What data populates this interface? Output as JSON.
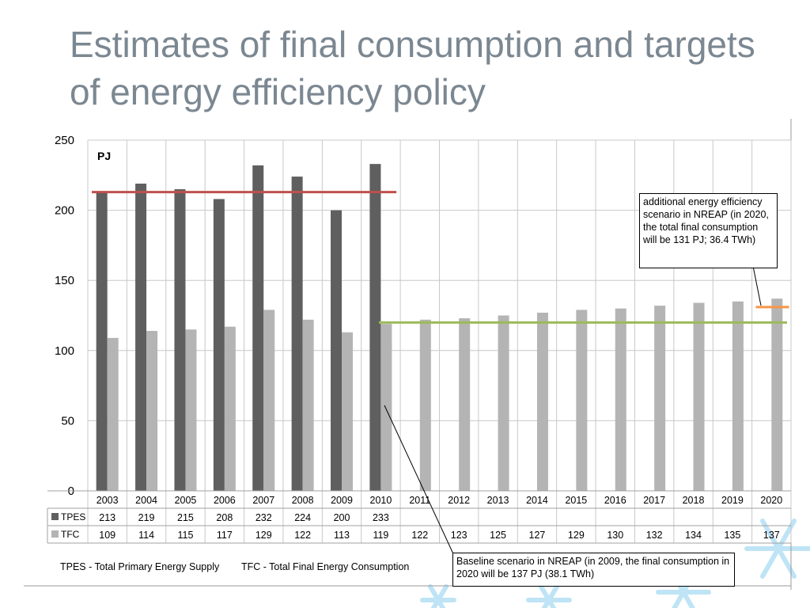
{
  "title": "Estimates of final consumption and targets of energy efficiency policy",
  "notes": {
    "tpes": "TPES - Total Primary Energy Supply",
    "tfc": "TFC - Total Final Energy Consumption"
  },
  "callouts": {
    "efficiency": "additional energy efficiency scenario in NREAP (in 2020, the total final consumption will be 131 PJ; 36.4 TWh)",
    "baseline": "Baseline scenario in NREAP (in 2009, the final consumption in 2020 will be 137 PJ (38.1 TWh)"
  },
  "colors": {
    "tpes": "#5f5f5f",
    "tfc": "#b4b4b4",
    "red_line": "#c0504d",
    "green_line": "#9bbb59",
    "orange_line": "#f79646",
    "title": "#7b8791"
  },
  "chart_data": {
    "type": "bar",
    "unit_label": "PJ",
    "categories": [
      "2003",
      "2004",
      "2005",
      "2006",
      "2007",
      "2008",
      "2009",
      "2010",
      "2011",
      "2012",
      "2013",
      "2014",
      "2015",
      "2016",
      "2017",
      "2018",
      "2019",
      "2020"
    ],
    "ylim": [
      0,
      250
    ],
    "yticks": [
      0,
      50,
      100,
      150,
      200,
      250
    ],
    "grid": true,
    "series": [
      {
        "name": "TPES",
        "values": [
          213,
          219,
          215,
          208,
          232,
          224,
          200,
          233,
          null,
          null,
          null,
          null,
          null,
          null,
          null,
          null,
          null,
          null
        ]
      },
      {
        "name": "TFC",
        "values": [
          109,
          114,
          115,
          117,
          129,
          122,
          113,
          119,
          122,
          123,
          125,
          127,
          129,
          130,
          132,
          134,
          135,
          137
        ]
      }
    ],
    "table_values": {
      "TPES": [
        "213",
        "219",
        "215",
        "208",
        "232",
        "224",
        "200",
        "233",
        "",
        "",
        "",
        "",
        "",
        "",
        "",
        "",
        "",
        ""
      ],
      "TFC": [
        "109",
        "114",
        "115",
        "117",
        "129",
        "122",
        "113",
        "119",
        "122",
        "123",
        "125",
        "127",
        "129",
        "130",
        "132",
        "134",
        "135",
        "137"
      ]
    },
    "reference_lines": [
      {
        "color": "red",
        "y": 213,
        "from": "2003",
        "to": "2010"
      },
      {
        "color": "green",
        "y": 120,
        "from": "2010",
        "to": "2020"
      },
      {
        "color": "orange",
        "y": 131,
        "from": "2020",
        "to": "2020"
      }
    ]
  }
}
